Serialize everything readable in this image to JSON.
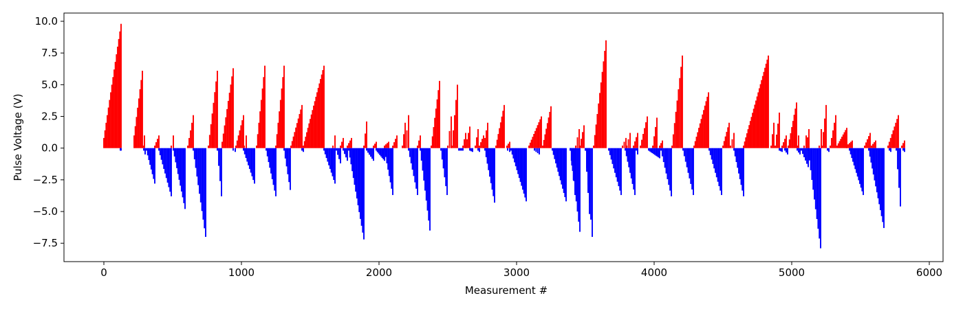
{
  "chart_data": {
    "type": "bar",
    "title": "",
    "xlabel": "Measurement #",
    "ylabel": "Pulse Voltage (V)",
    "xlim": [
      -290,
      6100
    ],
    "ylim": [
      -8.95,
      10.65
    ],
    "grid": false,
    "legend": "none",
    "x_ticks": [
      0,
      1000,
      2000,
      3000,
      4000,
      5000,
      6000
    ],
    "y_ticks": [
      -7.5,
      -5.0,
      -2.5,
      0.0,
      2.5,
      5.0,
      7.5,
      10.0
    ],
    "x_tick_labels": [
      "0",
      "1000",
      "2000",
      "3000",
      "4000",
      "5000",
      "6000"
    ],
    "y_tick_labels": [
      "−7.5",
      "−5.0",
      "−2.5",
      "0.0",
      "2.5",
      "5.0",
      "7.5",
      "10.0"
    ],
    "colors": {
      "positive": "#ff0000",
      "negative": "#0000ff"
    },
    "series": [
      {
        "sign": "positive",
        "segments": [
          [
            0,
            0.8,
            125,
            9.8
          ],
          [
            220,
            1.0,
            280,
            6.1
          ],
          [
            285,
            0.2,
            295,
            1.0
          ],
          [
            370,
            0.2,
            400,
            1.0
          ],
          [
            490,
            0.2,
            505,
            1.0
          ],
          [
            610,
            0.2,
            650,
            2.6
          ],
          [
            760,
            0.2,
            825,
            6.1
          ],
          [
            860,
            0.5,
            940,
            6.3
          ],
          [
            960,
            0.2,
            1015,
            2.6
          ],
          [
            1020,
            0.2,
            1035,
            1.0
          ],
          [
            1110,
            0.2,
            1170,
            6.5
          ],
          [
            1250,
            0.2,
            1310,
            6.5
          ],
          [
            1360,
            0.2,
            1440,
            3.4
          ],
          [
            1450,
            0.2,
            1600,
            6.5
          ],
          [
            1665,
            0.2,
            1680,
            1.0
          ],
          [
            1720,
            0.2,
            1740,
            0.8
          ],
          [
            1770,
            0.2,
            1800,
            0.8
          ],
          [
            1890,
            0.2,
            1910,
            2.1
          ],
          [
            1960,
            0.2,
            1980,
            0.5
          ],
          [
            2040,
            0.2,
            2070,
            0.5
          ],
          [
            2100,
            0.2,
            2130,
            1.0
          ],
          [
            2170,
            0.2,
            2190,
            2.0
          ],
          [
            2190,
            0.2,
            2215,
            2.6
          ],
          [
            2280,
            0.2,
            2300,
            1.0
          ],
          [
            2380,
            0.2,
            2440,
            5.3
          ],
          [
            2500,
            0.2,
            2525,
            2.5
          ],
          [
            2530,
            0.2,
            2570,
            5.0
          ],
          [
            2610,
            0.2,
            2630,
            1.2
          ],
          [
            2630,
            0.2,
            2660,
            1.7
          ],
          [
            2700,
            0.2,
            2720,
            1.5
          ],
          [
            2730,
            0.2,
            2760,
            1.0
          ],
          [
            2760,
            0.2,
            2790,
            2.0
          ],
          [
            2850,
            0.2,
            2910,
            3.4
          ],
          [
            2930,
            0.2,
            2950,
            0.5
          ],
          [
            3090,
            0.2,
            3180,
            2.5
          ],
          [
            3190,
            0.2,
            3250,
            3.3
          ],
          [
            3430,
            0.2,
            3455,
            1.5
          ],
          [
            3460,
            0.2,
            3490,
            1.8
          ],
          [
            3560,
            0.2,
            3650,
            8.5
          ],
          [
            3770,
            0.2,
            3795,
            0.8
          ],
          [
            3800,
            0.2,
            3825,
            1.2
          ],
          [
            3850,
            0.2,
            3880,
            1.2
          ],
          [
            3900,
            0.2,
            3950,
            2.5
          ],
          [
            3990,
            0.2,
            4020,
            2.4
          ],
          [
            4040,
            0.2,
            4060,
            0.6
          ],
          [
            4130,
            0.2,
            4205,
            7.3
          ],
          [
            4290,
            0.2,
            4395,
            4.4
          ],
          [
            4500,
            0.2,
            4545,
            2.0
          ],
          [
            4555,
            0.2,
            4580,
            1.2
          ],
          [
            4650,
            0.2,
            4830,
            7.3
          ],
          [
            4850,
            0.2,
            4870,
            2.0
          ],
          [
            4880,
            0.2,
            4910,
            2.8
          ],
          [
            4930,
            0.2,
            4960,
            1.0
          ],
          [
            4975,
            0.2,
            5035,
            3.6
          ],
          [
            5040,
            0.2,
            5050,
            1.0
          ],
          [
            5090,
            0.2,
            5105,
            1.0
          ],
          [
            5105,
            0.2,
            5125,
            1.5
          ],
          [
            5200,
            0.2,
            5215,
            1.5
          ],
          [
            5220,
            0.2,
            5250,
            3.4
          ],
          [
            5280,
            0.2,
            5320,
            2.6
          ],
          [
            5330,
            0.2,
            5400,
            1.6
          ],
          [
            5400,
            0.2,
            5440,
            0.6
          ],
          [
            5530,
            0.2,
            5570,
            1.2
          ],
          [
            5580,
            0.2,
            5610,
            0.6
          ],
          [
            5700,
            0.2,
            5775,
            2.6
          ],
          [
            5800,
            0.2,
            5820,
            0.6
          ]
        ]
      },
      {
        "sign": "negative",
        "segments": [
          [
            120,
            -0.2,
            125,
            -0.2
          ],
          [
            290,
            -0.2,
            300,
            -0.5
          ],
          [
            310,
            -0.2,
            370,
            -2.8
          ],
          [
            400,
            -0.2,
            490,
            -3.8
          ],
          [
            505,
            -0.2,
            590,
            -4.8
          ],
          [
            650,
            -0.2,
            740,
            -7.0
          ],
          [
            825,
            -0.2,
            855,
            -3.8
          ],
          [
            940,
            -0.2,
            955,
            -0.3
          ],
          [
            1015,
            -0.2,
            1095,
            -2.8
          ],
          [
            1180,
            -0.2,
            1250,
            -3.8
          ],
          [
            1310,
            -0.2,
            1355,
            -3.3
          ],
          [
            1440,
            -0.2,
            1450,
            -0.3
          ],
          [
            1600,
            -0.2,
            1680,
            -2.8
          ],
          [
            1690,
            -0.2,
            1720,
            -1.2
          ],
          [
            1740,
            -0.2,
            1770,
            -1.0
          ],
          [
            1780,
            -0.2,
            1890,
            -7.2
          ],
          [
            1910,
            -0.2,
            1960,
            -1.0
          ],
          [
            1980,
            -0.2,
            2040,
            -1.0
          ],
          [
            2040,
            -0.2,
            2100,
            -3.7
          ],
          [
            2215,
            -0.2,
            2280,
            -3.7
          ],
          [
            2300,
            -0.2,
            2370,
            -6.5
          ],
          [
            2450,
            -0.2,
            2495,
            -3.7
          ],
          [
            2580,
            -0.2,
            2610,
            -0.2
          ],
          [
            2660,
            -0.2,
            2680,
            -0.3
          ],
          [
            2720,
            -0.2,
            2730,
            -0.3
          ],
          [
            2770,
            -0.2,
            2840,
            -4.3
          ],
          [
            2935,
            -0.2,
            2950,
            -0.3
          ],
          [
            2960,
            -0.2,
            3070,
            -4.2
          ],
          [
            3130,
            -0.2,
            3165,
            -0.5
          ],
          [
            3260,
            -0.2,
            3360,
            -4.2
          ],
          [
            3390,
            -0.2,
            3425,
            -3.7
          ],
          [
            3390,
            -0.2,
            3460,
            -6.6
          ],
          [
            3500,
            -0.2,
            3530,
            -5.2
          ],
          [
            3500,
            -0.2,
            3550,
            -7.0
          ],
          [
            3670,
            -0.2,
            3760,
            -3.7
          ],
          [
            3790,
            -0.2,
            3860,
            -3.7
          ],
          [
            3870,
            -0.2,
            3880,
            -0.5
          ],
          [
            3960,
            -0.2,
            4040,
            -0.8
          ],
          [
            4050,
            -0.2,
            4125,
            -3.8
          ],
          [
            4210,
            -0.2,
            4285,
            -3.7
          ],
          [
            4400,
            -0.2,
            4490,
            -3.7
          ],
          [
            4580,
            -0.2,
            4650,
            -3.8
          ],
          [
            4910,
            -0.2,
            4930,
            -0.3
          ],
          [
            4950,
            -0.2,
            4970,
            -0.5
          ],
          [
            5040,
            -0.2,
            5060,
            -0.5
          ],
          [
            5070,
            -0.2,
            5120,
            -1.5
          ],
          [
            5120,
            -0.2,
            5210,
            -7.9
          ],
          [
            5260,
            -0.2,
            5270,
            -0.3
          ],
          [
            5420,
            -0.2,
            5520,
            -3.7
          ],
          [
            5560,
            -0.2,
            5670,
            -6.3
          ],
          [
            5710,
            -0.2,
            5720,
            -0.3
          ],
          [
            5760,
            -0.2,
            5790,
            -4.6
          ],
          [
            5810,
            -0.2,
            5820,
            -0.3
          ]
        ]
      }
    ]
  }
}
